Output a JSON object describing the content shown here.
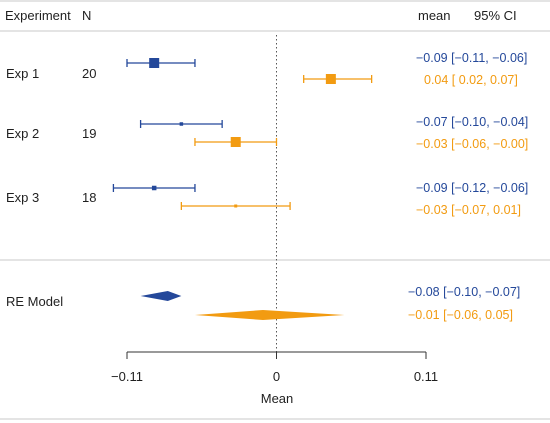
{
  "chart_data": {
    "type": "forest",
    "headers": {
      "experiment": "Experiment",
      "n": "N",
      "mean": "mean",
      "ci": "95% CI"
    },
    "rows": [
      {
        "label": "Exp 1",
        "n": "20",
        "series": [
          {
            "mean": -0.09,
            "ci": [
              -0.11,
              -0.06
            ],
            "text": "−0.09 [−0.11, −0.06]",
            "color": "#24489a",
            "weight": 1.0
          },
          {
            "mean": 0.04,
            "ci": [
              0.02,
              0.07
            ],
            "text": "0.04 [ 0.02,  0.07]",
            "color": "#f29b11",
            "weight": 1.0
          }
        ]
      },
      {
        "label": "Exp 2",
        "n": "19",
        "series": [
          {
            "mean": -0.07,
            "ci": [
              -0.1,
              -0.04
            ],
            "text": "−0.07 [−0.10, −0.04]",
            "color": "#24489a",
            "weight": 0.35
          },
          {
            "mean": -0.03,
            "ci": [
              -0.06,
              -0.0
            ],
            "text": "−0.03 [−0.06, −0.00]",
            "color": "#f29b11",
            "weight": 1.0
          }
        ]
      },
      {
        "label": "Exp 3",
        "n": "18",
        "series": [
          {
            "mean": -0.09,
            "ci": [
              -0.12,
              -0.06
            ],
            "text": "−0.09 [−0.12, −0.06]",
            "color": "#24489a",
            "weight": 0.45
          },
          {
            "mean": -0.03,
            "ci": [
              -0.07,
              0.01
            ],
            "text": "−0.03 [−0.07,  0.01]",
            "color": "#f29b11",
            "weight": 0.2
          }
        ]
      }
    ],
    "summary": {
      "label": "RE Model",
      "series": [
        {
          "mean": -0.08,
          "ci": [
            -0.1,
            -0.07
          ],
          "text": "−0.08 [−0.10, −0.07]",
          "color": "#24489a"
        },
        {
          "mean": -0.01,
          "ci": [
            -0.06,
            0.05
          ],
          "text": "−0.01 [−0.06,  0.05]",
          "color": "#f29b11"
        }
      ]
    },
    "x_axis": {
      "label": "Mean",
      "ticks": [
        -0.11,
        0,
        0.11
      ],
      "tick_labels": [
        "−0.11",
        "0",
        "0.11"
      ],
      "xlim": [
        -0.11,
        0.11
      ]
    },
    "reference_line": 0,
    "grid": false,
    "legend": "none"
  }
}
